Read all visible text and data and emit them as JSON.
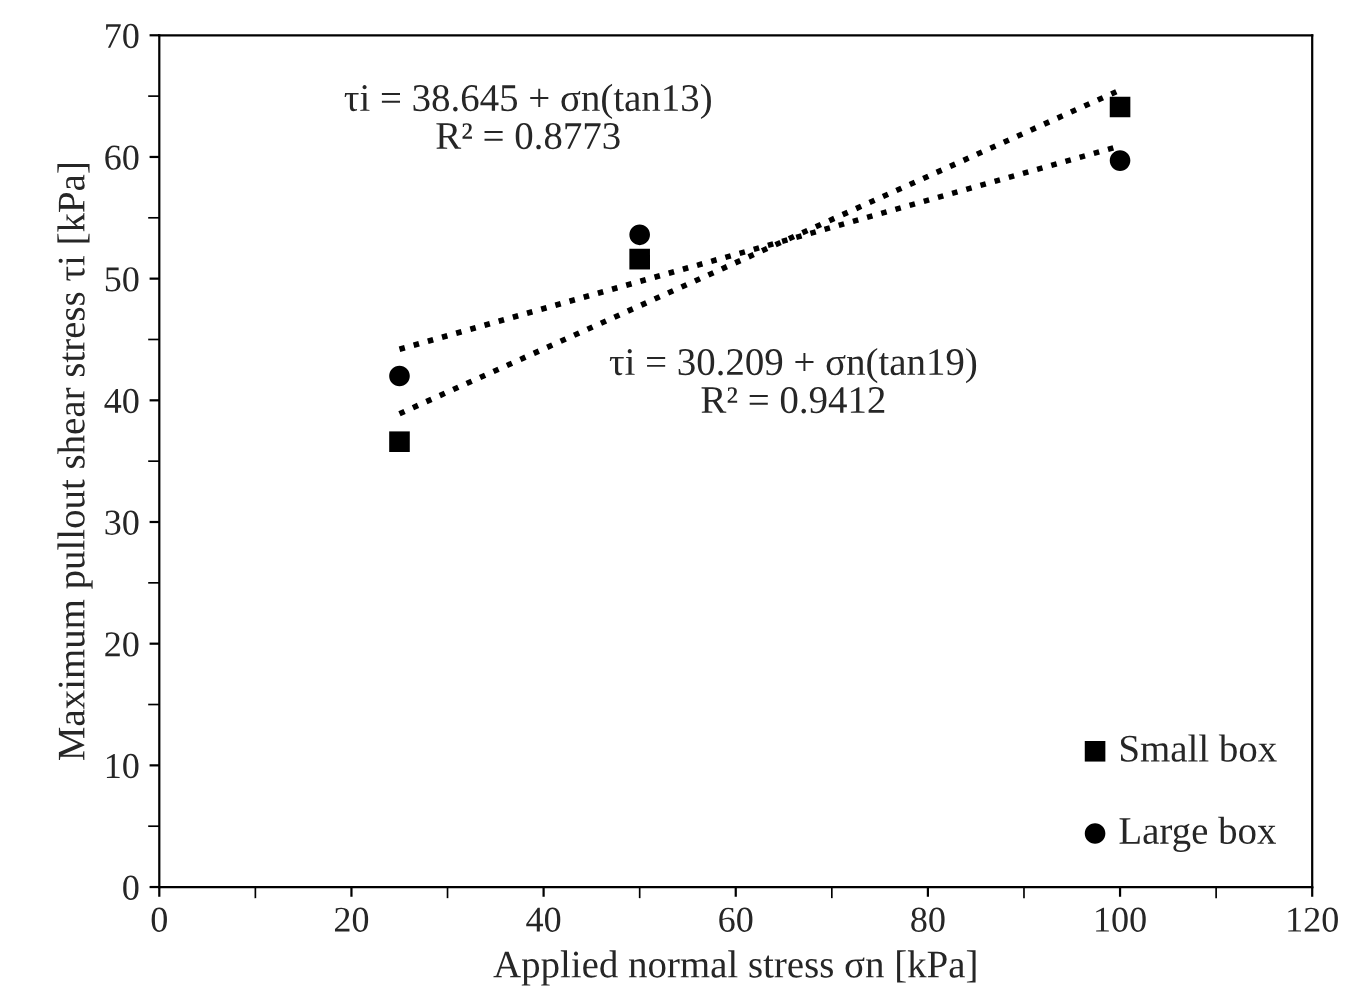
{
  "chart_data": {
    "type": "scatter",
    "xlabel": "Applied normal stress σn [kPa]",
    "ylabel": "Maximum pullout shear stress τi [kPa]",
    "xlim": [
      0,
      120
    ],
    "xticks": [
      0,
      20,
      40,
      60,
      80,
      100,
      120
    ],
    "ylim": [
      0,
      70
    ],
    "yticks": [
      0,
      10,
      20,
      30,
      40,
      50,
      60,
      70
    ],
    "grid": false,
    "legend": "bottom right",
    "series": [
      {
        "name": "Small box",
        "marker": "square",
        "color": "#000000",
        "x": [
          25,
          50,
          100
        ],
        "values": [
          36.6,
          51.6,
          64.1
        ]
      },
      {
        "name": "Large box",
        "marker": "circle",
        "color": "#000000",
        "x": [
          25,
          50,
          100
        ],
        "values": [
          42.0,
          53.6,
          59.7
        ]
      },
      {
        "type": "line",
        "marker": "none",
        "line_style": "dotted",
        "color": "#000000",
        "x": [
          25,
          100
        ],
        "values": [
          38.9,
          65.5
        ]
      },
      {
        "type": "line",
        "marker": "none",
        "line_style": "dotted",
        "color": "#000000",
        "x": [
          25,
          100
        ],
        "values": [
          44.2,
          60.9
        ]
      }
    ],
    "annotations": [
      "τi = 38.645 + σn(tan13)\nR² = 0.8773",
      "τi = 30.209 + σn(tan19)\nR² = 0.9412"
    ]
  }
}
